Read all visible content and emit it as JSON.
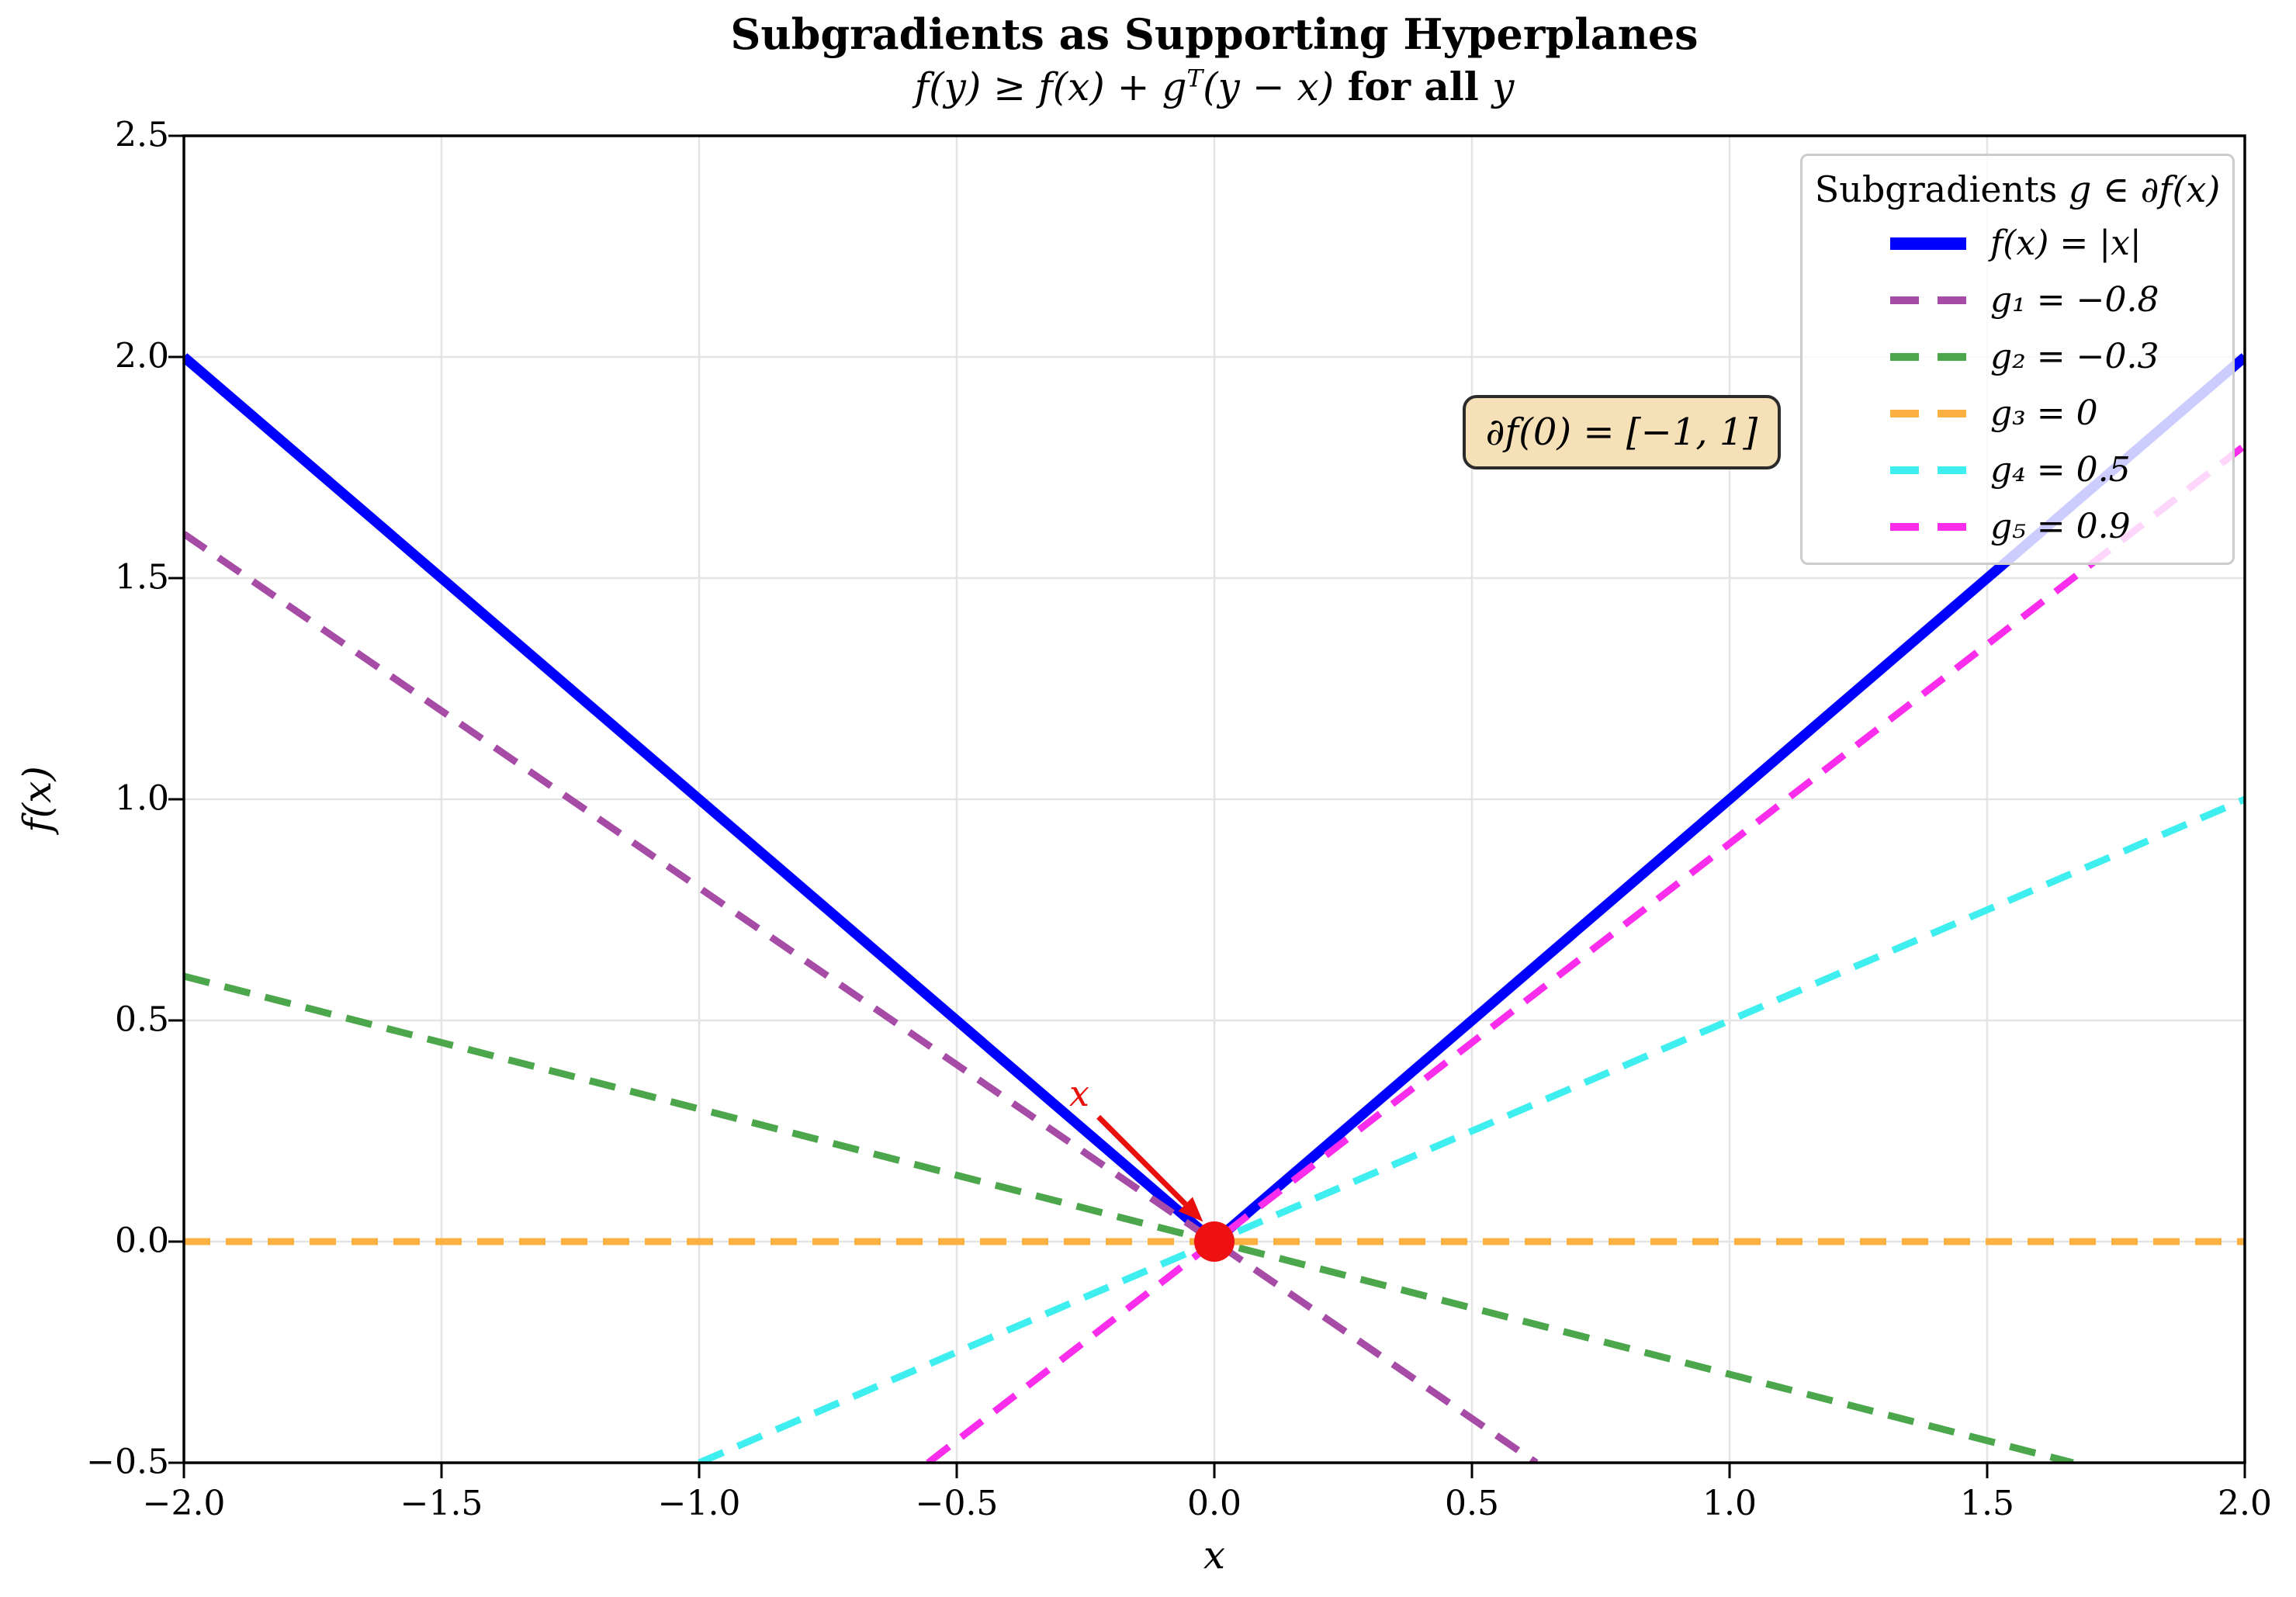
{
  "figure": {
    "background": "#FFFFFF"
  },
  "title": {
    "text": "Subgradients as Supporting Hyperplanes"
  },
  "subtitle": {
    "m1": "f(y) ≥ f(x) + g",
    "sup": "T",
    "m2": "(y − x)",
    "bold": " for all ",
    "m3": "y"
  },
  "axes": {
    "xlabel": "x",
    "ylabel": "f(x)"
  },
  "legend": {
    "title_plain": "Subgradients ",
    "title_math": "g ∈ ∂f(x)"
  },
  "annotation": {
    "text": "∂f(0) = [−1, 1]"
  },
  "point_label": {
    "text": "x"
  },
  "chart_data": {
    "type": "line",
    "title": "Subgradients as Supporting Hyperplanes",
    "subtitle": "f(y) ≥ f(x) + gᵀ(y − x) for all y",
    "xlabel": "x",
    "ylabel": "f(x)",
    "xlim": [
      -2,
      2
    ],
    "ylim": [
      -0.5,
      2.5
    ],
    "grid": true,
    "grid_color": "#e4e4e4",
    "legend_position": "upper right",
    "legend_title": "Subgradients g ∈ ∂f(x)",
    "xticks": [
      {
        "v": -2.0,
        "label": "−2.0"
      },
      {
        "v": -1.5,
        "label": "−1.5"
      },
      {
        "v": -1.0,
        "label": "−1.0"
      },
      {
        "v": -0.5,
        "label": "−0.5"
      },
      {
        "v": 0.0,
        "label": "0.0"
      },
      {
        "v": 0.5,
        "label": "0.5"
      },
      {
        "v": 1.0,
        "label": "1.0"
      },
      {
        "v": 1.5,
        "label": "1.5"
      },
      {
        "v": 2.0,
        "label": "2.0"
      }
    ],
    "yticks": [
      {
        "v": -0.5,
        "label": "−0.5"
      },
      {
        "v": 0.0,
        "label": "0.0"
      },
      {
        "v": 0.5,
        "label": "0.5"
      },
      {
        "v": 1.0,
        "label": "1.0"
      },
      {
        "v": 1.5,
        "label": "1.5"
      },
      {
        "v": 2.0,
        "label": "2.0"
      },
      {
        "v": 2.5,
        "label": "2.5"
      }
    ],
    "series": [
      {
        "name": "f(x) = |x|",
        "kind": "polyline",
        "points": [
          [
            -2,
            2
          ],
          [
            0,
            0
          ],
          [
            2,
            2
          ]
        ],
        "color": "#0000FF",
        "dashed": false,
        "width": 13
      },
      {
        "name": "g₁ = −0.8",
        "kind": "slope_through_origin",
        "slope": -0.8,
        "color": "#A64CA6",
        "dashed": true,
        "width": 9
      },
      {
        "name": "g₂ = −0.3",
        "kind": "slope_through_origin",
        "slope": -0.3,
        "color": "#4CA64C",
        "dashed": true,
        "width": 9
      },
      {
        "name": "g₃ = 0",
        "kind": "slope_through_origin",
        "slope": 0,
        "color": "#FBB042",
        "dashed": true,
        "width": 9
      },
      {
        "name": "g₄ = 0.5",
        "kind": "slope_through_origin",
        "slope": 0.5,
        "color": "#3FEFEF",
        "dashed": true,
        "width": 9
      },
      {
        "name": "g₅ = 0.9",
        "kind": "slope_through_origin",
        "slope": 0.9,
        "color": "#FB2DEC",
        "dashed": true,
        "width": 9
      }
    ],
    "marker": {
      "x": 0,
      "y": 0,
      "color": "#EE1111",
      "radius": 26,
      "label": "x",
      "label_x": -0.262,
      "label_y": 0.335
    },
    "arrow": {
      "from": [
        -0.225,
        0.282
      ],
      "to": [
        -0.022,
        0.045
      ],
      "color": "#E8100C"
    },
    "annotation": {
      "text": "∂f(0) = [−1, 1]",
      "x": 0.787,
      "y": 1.83
    }
  }
}
